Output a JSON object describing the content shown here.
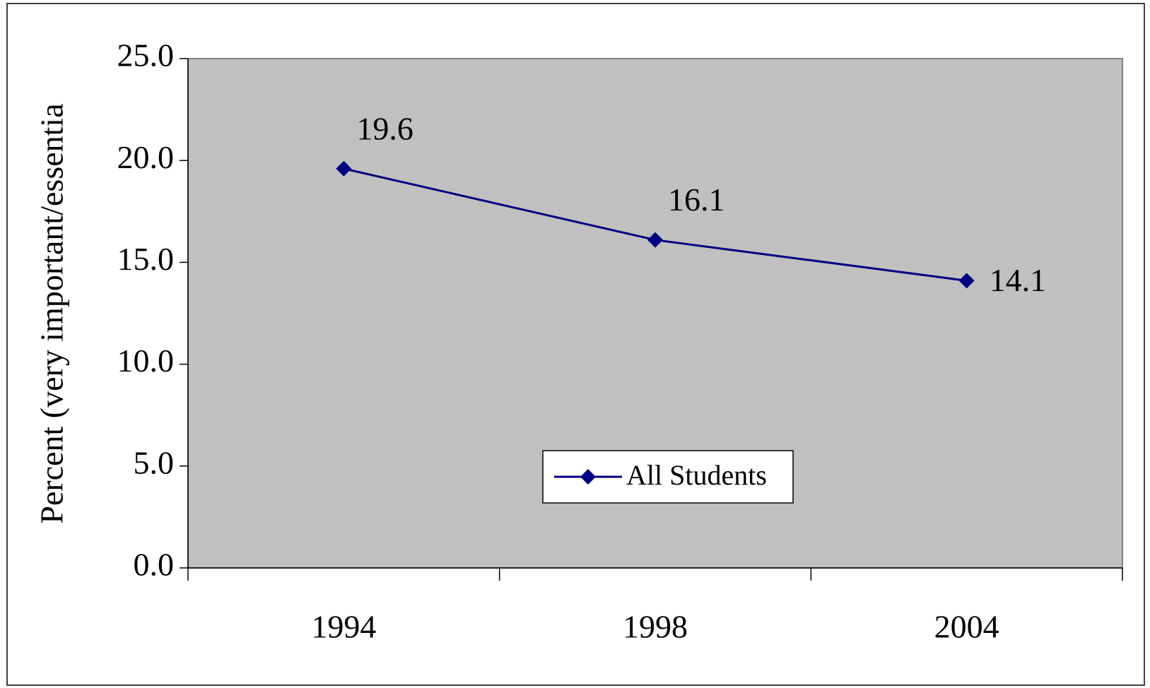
{
  "chart_data": {
    "type": "line",
    "y_label": "Percent (very important/essentia",
    "categories": [
      "1994",
      "1998",
      "2004"
    ],
    "series": [
      {
        "name": "All Students",
        "color": "#000080",
        "values": [
          19.6,
          16.1,
          14.1
        ]
      }
    ],
    "ylim": [
      0,
      25
    ],
    "yticks": [
      {
        "value": 0,
        "label": "0.0"
      },
      {
        "value": 5,
        "label": "5.0"
      },
      {
        "value": 10,
        "label": "10.0"
      },
      {
        "value": 15,
        "label": "15.0"
      },
      {
        "value": 20,
        "label": "20.0"
      },
      {
        "value": 25,
        "label": "25.0"
      }
    ],
    "plot_background": "#c0c0c0",
    "legend": "bottom"
  }
}
